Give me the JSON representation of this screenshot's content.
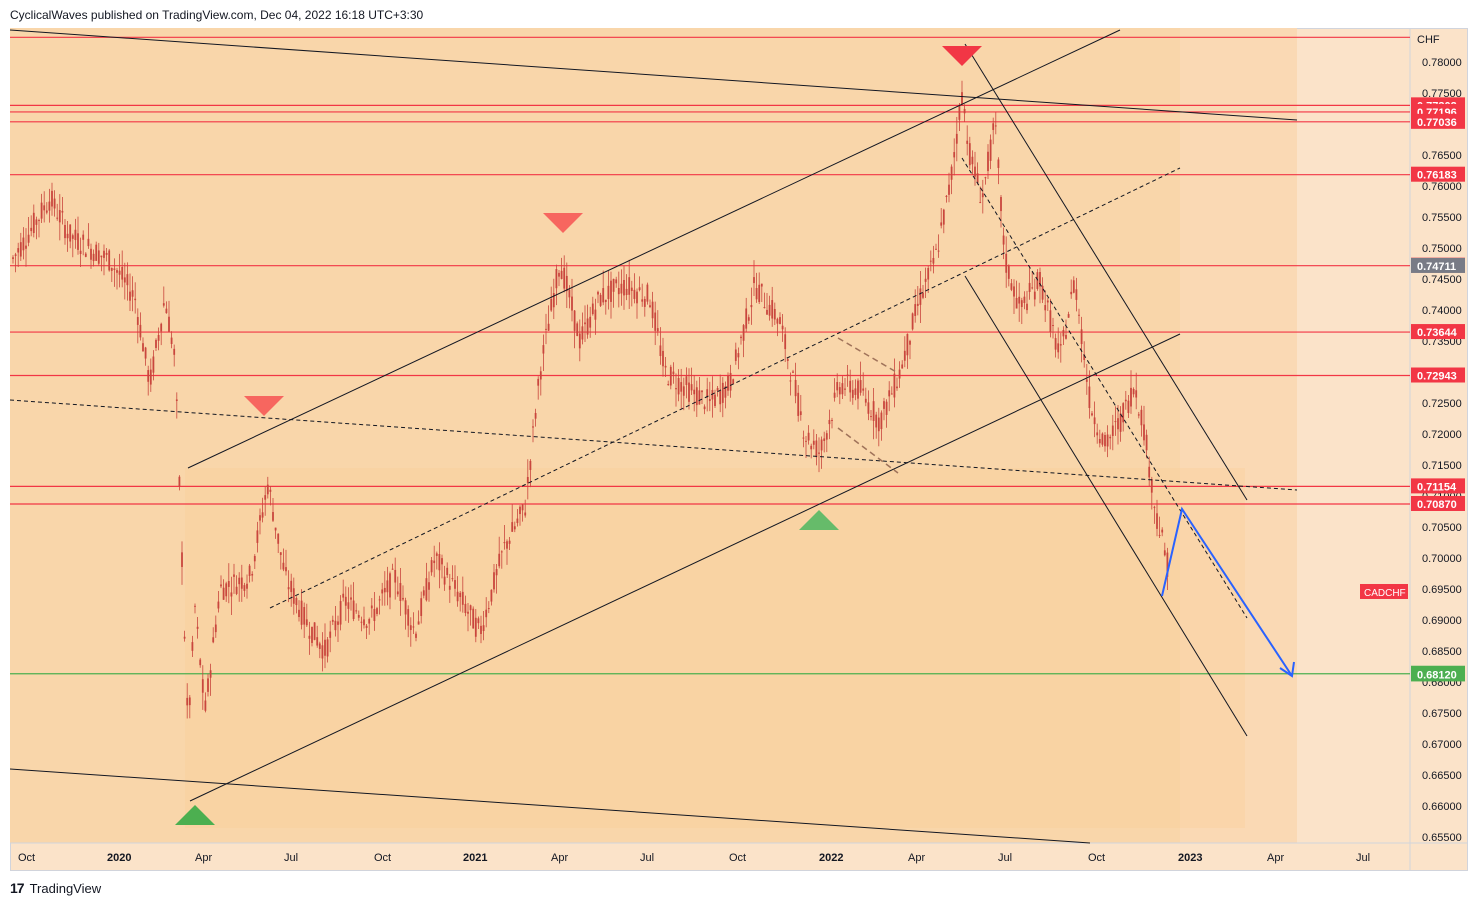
{
  "header": {
    "publisher_text": "CyclicalWaves published on TradingView.com, Dec 04, 2022 16:18 UTC+3:30"
  },
  "footer": {
    "brand": "TradingView",
    "logo_glyph": "17"
  },
  "chart_data": {
    "type": "candlestick",
    "symbol": "CADCHF",
    "currency": "CHF",
    "x_ticks": [
      "Oct",
      "2020",
      "Apr",
      "Jul",
      "Oct",
      "2021",
      "Apr",
      "Jul",
      "Oct",
      "2022",
      "Apr",
      "Jul",
      "Oct",
      "2023",
      "Apr",
      "Jul"
    ],
    "y_ticks": [
      0.655,
      0.66,
      0.665,
      0.67,
      0.675,
      0.68,
      0.685,
      0.69,
      0.695,
      0.7,
      0.705,
      0.71,
      0.715,
      0.72,
      0.725,
      0.73,
      0.735,
      0.74,
      0.745,
      0.75,
      0.755,
      0.76,
      0.765,
      0.77,
      0.775,
      0.78
    ],
    "y_tick_labels": [
      "0.65500",
      "0.66000",
      "0.66500",
      "0.67000",
      "0.67500",
      "0.68000",
      "0.68500",
      "0.69000",
      "0.69500",
      "0.70000",
      "0.70500",
      "0.71000",
      "0.71500",
      "0.72000",
      "0.72500",
      "0.73000",
      "0.73500",
      "0.74000",
      "0.74500",
      "0.75000",
      "0.75500",
      "0.76000",
      "0.76500",
      "0.77000",
      "0.77500",
      "0.78000"
    ],
    "ylim": [
      0.654,
      0.7855
    ],
    "horizontal_levels": [
      {
        "value": 0.784,
        "label": "",
        "color": "#f23645"
      },
      {
        "value": 0.77302,
        "label": "0.77302",
        "color": "#f23645"
      },
      {
        "value": 0.77196,
        "label": "0.77196",
        "color": "#f23645"
      },
      {
        "value": 0.77036,
        "label": "0.77036",
        "color": "#f23645"
      },
      {
        "value": 0.76183,
        "label": "0.76183",
        "color": "#f23645"
      },
      {
        "value": 0.74715,
        "label": "0.74715",
        "color": "#f23645"
      },
      {
        "value": 0.73644,
        "label": "0.73644",
        "color": "#f23645"
      },
      {
        "value": 0.72943,
        "label": "0.72943",
        "color": "#f23645"
      },
      {
        "value": 0.71154,
        "label": "0.71154",
        "color": "#f23645"
      },
      {
        "value": 0.7087,
        "label": "0.70870",
        "color": "#f23645"
      },
      {
        "value": 0.68131,
        "label": "0.68131",
        "color": "#4caf50"
      }
    ],
    "extra_price_badges": [
      {
        "value": 0.74711,
        "label": "0.74711",
        "color": "#787b86"
      },
      {
        "value": 0.6812,
        "label": "0.68120",
        "color": "#4caf50"
      }
    ],
    "symbol_badge": {
      "label": "CADCHF",
      "value": 0.6945,
      "color": "#f23645"
    },
    "colors": {
      "candle": "#c9463d",
      "background": "#fbe3c9",
      "channel_fill": "#f9d3a4",
      "projection": "#2962ff"
    }
  }
}
